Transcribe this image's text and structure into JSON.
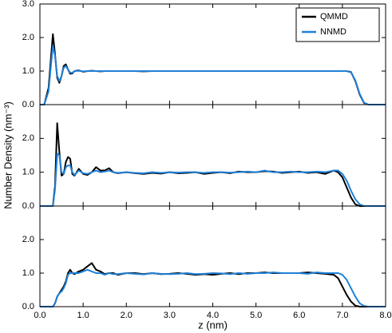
{
  "chart_data": [
    {
      "type": "line",
      "legend": "upper right",
      "x": [
        0,
        0.1,
        0.2,
        0.25,
        0.3,
        0.35,
        0.4,
        0.45,
        0.5,
        0.55,
        0.6,
        0.65,
        0.7,
        0.75,
        0.8,
        0.9,
        1.0,
        1.1,
        1.2,
        1.3,
        1.4,
        1.5,
        1.6,
        1.7,
        1.8,
        2.0,
        2.2,
        2.4,
        2.6,
        2.8,
        3.0,
        3.2,
        3.4,
        3.6,
        3.8,
        4.0,
        4.2,
        4.4,
        4.6,
        4.8,
        5.0,
        5.2,
        5.4,
        5.6,
        5.8,
        6.0,
        6.2,
        6.4,
        6.6,
        6.8,
        6.9,
        7.0,
        7.1,
        7.2,
        7.3,
        7.4,
        7.5,
        7.6,
        8.0
      ],
      "series": [
        {
          "name": "QMMD",
          "color": "#000000",
          "values": [
            0,
            0,
            0.5,
            1.3,
            2.1,
            1.5,
            0.8,
            0.65,
            0.85,
            1.15,
            1.2,
            1.05,
            0.92,
            0.93,
            1.0,
            1.02,
            0.98,
            1.0,
            1.01,
            1.0,
            0.99,
            1.0,
            1.0,
            1.0,
            1.0,
            1.0,
            1.0,
            0.99,
            1.0,
            1.0,
            1.0,
            1.0,
            1.0,
            1.0,
            1.0,
            1.0,
            1.0,
            1.0,
            1.0,
            1.0,
            1.0,
            1.0,
            1.0,
            1.0,
            1.0,
            1.0,
            1.0,
            1.0,
            1.0,
            1.0,
            1.0,
            1.0,
            1.0,
            0.97,
            0.7,
            0.3,
            0.05,
            0,
            0
          ]
        },
        {
          "name": "NNMD",
          "color": "#1f80d8",
          "values": [
            0,
            0,
            0.4,
            1.1,
            1.75,
            1.45,
            0.85,
            0.7,
            0.85,
            1.1,
            1.15,
            1.05,
            0.95,
            0.95,
            1.0,
            1.01,
            0.99,
            1.0,
            1.0,
            1.0,
            1.0,
            1.0,
            1.0,
            1.0,
            1.0,
            1.0,
            1.0,
            1.0,
            1.0,
            1.0,
            1.0,
            1.0,
            1.0,
            1.0,
            1.0,
            1.0,
            1.0,
            1.0,
            1.0,
            1.0,
            1.0,
            1.0,
            1.0,
            1.0,
            1.0,
            1.0,
            1.0,
            1.0,
            1.0,
            1.0,
            1.0,
            1.0,
            1.0,
            0.96,
            0.72,
            0.32,
            0.06,
            0,
            0
          ]
        }
      ],
      "xlim": [
        0,
        8
      ],
      "ylim": [
        0,
        3
      ],
      "xticks": [
        0,
        1,
        2,
        3,
        4,
        5,
        6,
        7,
        8
      ],
      "yticks": [
        {
          "value": 0,
          "label": "0.0"
        },
        {
          "value": 1,
          "label": "1.0"
        },
        {
          "value": 2,
          "label": "2.0"
        },
        {
          "value": 3,
          "label": "3.0"
        }
      ]
    },
    {
      "type": "line",
      "ylabel": "Number Density (nm⁻³)",
      "x": [
        0,
        0.1,
        0.2,
        0.25,
        0.3,
        0.35,
        0.4,
        0.45,
        0.5,
        0.55,
        0.6,
        0.65,
        0.7,
        0.75,
        0.8,
        0.9,
        1.0,
        1.1,
        1.2,
        1.3,
        1.4,
        1.5,
        1.6,
        1.7,
        1.8,
        2.0,
        2.2,
        2.4,
        2.6,
        2.8,
        3.0,
        3.2,
        3.4,
        3.6,
        3.8,
        4.0,
        4.2,
        4.4,
        4.6,
        4.8,
        5.0,
        5.2,
        5.4,
        5.6,
        5.8,
        6.0,
        6.2,
        6.4,
        6.6,
        6.8,
        6.9,
        7.0,
        7.1,
        7.2,
        7.3,
        7.4,
        7.5,
        7.6,
        8.0
      ],
      "series": [
        {
          "name": "QMMD",
          "color": "#000000",
          "values": [
            0,
            0,
            0,
            0,
            0,
            0.6,
            2.45,
            1.6,
            0.9,
            0.95,
            1.3,
            1.45,
            1.4,
            0.95,
            0.9,
            1.1,
            0.95,
            0.92,
            1.0,
            1.15,
            1.05,
            1.05,
            1.12,
            1.0,
            0.97,
            1.0,
            0.97,
            0.95,
            0.98,
            0.96,
            1.0,
            0.97,
            0.98,
            1.0,
            0.95,
            0.98,
            1.0,
            0.97,
            1.02,
            1.0,
            1.0,
            1.03,
            1.02,
            0.98,
            1.0,
            1.02,
            0.98,
            1.0,
            0.95,
            1.05,
            1.0,
            0.85,
            0.55,
            0.25,
            0.05,
            0,
            0,
            0,
            0
          ]
        },
        {
          "name": "NNMD",
          "color": "#1f80d8",
          "values": [
            0,
            0,
            0,
            0,
            0,
            0.5,
            1.55,
            1.5,
            1.0,
            0.95,
            1.15,
            1.2,
            1.2,
            1.0,
            0.92,
            1.05,
            0.97,
            0.95,
            1.0,
            1.05,
            1.0,
            1.02,
            1.05,
            1.0,
            0.98,
            1.0,
            0.98,
            0.97,
            1.0,
            0.98,
            1.0,
            0.99,
            1.0,
            1.0,
            0.98,
            1.0,
            1.0,
            0.99,
            1.0,
            1.02,
            1.0,
            1.05,
            1.0,
            1.0,
            1.02,
            1.0,
            1.0,
            1.02,
            1.0,
            1.05,
            1.05,
            0.95,
            0.75,
            0.45,
            0.2,
            0.05,
            0,
            0,
            0
          ]
        }
      ],
      "xlim": [
        0,
        8
      ],
      "ylim": [
        0,
        3
      ],
      "xticks": [
        0,
        1,
        2,
        3,
        4,
        5,
        6,
        7,
        8
      ],
      "yticks": [
        {
          "value": 0,
          "label": "0.0"
        },
        {
          "value": 1,
          "label": "1.0"
        },
        {
          "value": 2,
          "label": "2.0"
        }
      ]
    },
    {
      "type": "line",
      "xlabel": "z (nm)",
      "x": [
        0,
        0.1,
        0.2,
        0.25,
        0.3,
        0.35,
        0.4,
        0.45,
        0.5,
        0.55,
        0.6,
        0.65,
        0.7,
        0.75,
        0.8,
        0.9,
        1.0,
        1.1,
        1.2,
        1.3,
        1.4,
        1.5,
        1.6,
        1.7,
        1.8,
        2.0,
        2.2,
        2.4,
        2.6,
        2.8,
        3.0,
        3.2,
        3.4,
        3.6,
        3.8,
        4.0,
        4.2,
        4.4,
        4.6,
        4.8,
        5.0,
        5.2,
        5.4,
        5.6,
        5.8,
        6.0,
        6.2,
        6.4,
        6.6,
        6.8,
        6.9,
        7.0,
        7.1,
        7.2,
        7.3,
        7.4,
        7.5,
        7.6,
        8.0
      ],
      "series": [
        {
          "name": "QMMD",
          "color": "#000000",
          "values": [
            0,
            0,
            0,
            0,
            0,
            0.1,
            0.3,
            0.4,
            0.5,
            0.6,
            0.75,
            1.0,
            1.1,
            1.0,
            0.97,
            1.05,
            1.1,
            1.2,
            1.3,
            1.1,
            1.05,
            0.97,
            1.0,
            1.0,
            0.95,
            1.0,
            1.0,
            0.97,
            1.0,
            0.97,
            0.98,
            1.0,
            0.98,
            0.95,
            0.97,
            0.95,
            0.98,
            1.0,
            0.97,
            1.0,
            1.0,
            1.02,
            1.0,
            1.0,
            1.0,
            1.0,
            1.02,
            1.0,
            0.98,
            0.95,
            0.85,
            0.6,
            0.35,
            0.15,
            0.03,
            0,
            0,
            0,
            0
          ]
        },
        {
          "name": "NNMD",
          "color": "#1f80d8",
          "values": [
            0,
            0,
            0,
            0,
            0,
            0.1,
            0.3,
            0.4,
            0.45,
            0.55,
            0.7,
            0.95,
            1.0,
            1.0,
            1.0,
            1.0,
            1.05,
            1.1,
            1.05,
            1.0,
            1.0,
            0.95,
            1.0,
            0.97,
            0.97,
            1.0,
            0.98,
            0.96,
            1.0,
            0.98,
            0.97,
            0.98,
            1.0,
            0.97,
            0.98,
            1.0,
            0.99,
            0.97,
            1.0,
            0.98,
            1.0,
            1.0,
            1.02,
            1.0,
            1.0,
            1.0,
            0.98,
            1.02,
            1.0,
            1.0,
            1.0,
            0.95,
            0.8,
            0.55,
            0.3,
            0.1,
            0.02,
            0,
            0
          ]
        }
      ],
      "xlim": [
        0,
        8
      ],
      "ylim": [
        0,
        3
      ],
      "xticks": [
        {
          "value": 0,
          "label": "0.0"
        },
        {
          "value": 1,
          "label": "1.0"
        },
        {
          "value": 2,
          "label": "2.0"
        },
        {
          "value": 3,
          "label": "3.0"
        },
        {
          "value": 4,
          "label": "4.0"
        },
        {
          "value": 5,
          "label": "5.0"
        },
        {
          "value": 6,
          "label": "6.0"
        },
        {
          "value": 7,
          "label": "7.0"
        },
        {
          "value": 8,
          "label": "8.0"
        }
      ],
      "yticks": [
        {
          "value": 0,
          "label": "0.0"
        },
        {
          "value": 1,
          "label": "1.0"
        },
        {
          "value": 2,
          "label": "2.0"
        }
      ]
    }
  ]
}
